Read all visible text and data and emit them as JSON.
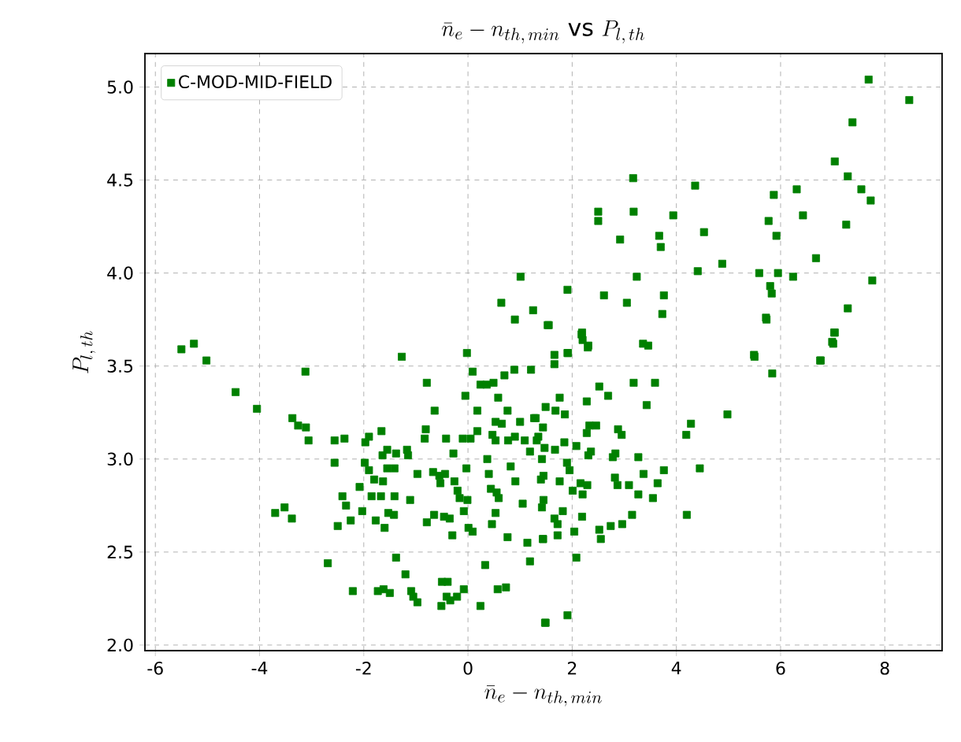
{
  "chart_data": {
    "type": "scatter",
    "title": "\\bar{n}_e - n_{th,\\,min}\\ \\mathrm{vs}\\ P_{l,\\,th}",
    "xlabel": "\\bar{n}_e - n_{th,\\,min}",
    "ylabel": "P_{l,\\,th}",
    "xlim": [
      -6.2,
      9.1
    ],
    "ylim": [
      1.97,
      5.18
    ],
    "xticks": [
      -6,
      -4,
      -2,
      0,
      2,
      4,
      6,
      8
    ],
    "yticks": [
      {
        "value": 2.0,
        "label": "2.0"
      },
      {
        "value": 2.5,
        "label": "2.5"
      },
      {
        "value": 3.0,
        "label": "3.0"
      },
      {
        "value": 3.5,
        "label": "3.5"
      },
      {
        "value": 4.0,
        "label": "4.0"
      },
      {
        "value": 4.5,
        "label": "4.5"
      },
      {
        "value": 5.0,
        "label": "5.0"
      }
    ],
    "grid": true,
    "legend": "top left",
    "marker": "square",
    "series": [
      {
        "name": "C-MOD-MID-FIELD",
        "color": "#008000",
        "x": [
          -5.5,
          -5.26,
          -5.02,
          -1.27,
          -0.02,
          0.64,
          1.01,
          0.9,
          1.25,
          1.53,
          7.69,
          8.47,
          7.38,
          7.04,
          7.29,
          7.55,
          7.73,
          7.26,
          7.76,
          7.29,
          7.04,
          7.01,
          6.76,
          6.68,
          6.43,
          6.31,
          5.87,
          5.77,
          5.92,
          6.24,
          5.95,
          5.59,
          5.8,
          5.83,
          5.72,
          5.49,
          3.17,
          4.36,
          3.18,
          3.94,
          2.5,
          2.5,
          4.53,
          2.92,
          3.67,
          3.7,
          4.88,
          4.41,
          3.24,
          1.91,
          2.61,
          3.05,
          3.76,
          3.73,
          1.55,
          2.19,
          2.2,
          2.31,
          3.36,
          3.46,
          1.66,
          1.91,
          -4.46,
          -4.05,
          -3.12,
          -3.37,
          -3.26,
          -3.11,
          -3.06,
          -3.7,
          -3.52,
          -3.38,
          -2.69,
          -2.56,
          -2.37,
          -2.56,
          -2.5,
          -2.41,
          -2.34,
          -2.25,
          -2.21,
          -2.08,
          -2.03,
          -1.97,
          -1.9,
          -1.66,
          -1.55,
          -1.64,
          -1.38,
          -1.17,
          -1.15,
          -1.98,
          -1.9,
          -1.8,
          -1.63,
          -1.55,
          -1.41,
          -1.85,
          -1.67,
          -1.41,
          -1.11,
          -1.53,
          -1.42,
          -1.77,
          -1.6,
          -1.38,
          -1.2,
          -1.73,
          -1.62,
          -1.5,
          -1.09,
          -1.05,
          -0.97,
          -0.79,
          -0.64,
          -0.81,
          -0.83,
          -0.97,
          -0.67,
          -0.55,
          -0.44,
          -0.53,
          -0.79,
          -0.65,
          -0.46,
          -0.35,
          -0.3,
          -0.42,
          -0.28,
          -0.26,
          -0.2,
          -0.16,
          -0.1,
          -0.03,
          -0.01,
          -0.08,
          0.01,
          0.09,
          -0.5,
          -0.39,
          -0.51,
          -0.41,
          -0.34,
          -0.21,
          -0.08,
          0.24,
          0.33,
          0.57,
          0.73,
          -0.05,
          0.09,
          0.18,
          0.24,
          0.36,
          0.49,
          0.7,
          0.89,
          1.21,
          0.58,
          0.76,
          0.53,
          0.65,
          0.18,
          0.05,
          0.47,
          0.53,
          0.37,
          0.77,
          0.9,
          1.0,
          1.27,
          0.4,
          0.44,
          0.55,
          0.59,
          0.82,
          0.91,
          1.09,
          1.19,
          1.32,
          1.05,
          0.53,
          0.46,
          0.76,
          1.14,
          1.44,
          1.19,
          1.48,
          1.45,
          1.42,
          1.66,
          1.92,
          2.18,
          2.3,
          2.52,
          2.69,
          3.18,
          3.59,
          3.43,
          2.28,
          1.76,
          1.86,
          1.49,
          1.68,
          1.3,
          2.33,
          2.46,
          2.28,
          2.88,
          2.95,
          1.44,
          1.35,
          1.85,
          2.08,
          2.36,
          2.31,
          1.47,
          1.67,
          2.78,
          2.83,
          3.27,
          4.19,
          4.28,
          4.98,
          4.45,
          3.76,
          3.37,
          3.64,
          3.09,
          2.82,
          2.87,
          3.27,
          3.55,
          2.16,
          2.29,
          2.2,
          2.01,
          1.95,
          1.9,
          1.76,
          1.4,
          1.45,
          1.42,
          1.82,
          1.66,
          1.72,
          2.19,
          3.15,
          2.96,
          2.74,
          2.52,
          2.55,
          2.04,
          1.72,
          1.44,
          2.08,
          4.2,
          1.91,
          1.49,
          5.5,
          5.84,
          6.77,
          7.03,
          6.99,
          5.73
        ],
        "values": [
          3.59,
          3.62,
          3.53,
          3.55,
          3.57,
          3.84,
          3.98,
          3.75,
          3.8,
          3.72,
          5.04,
          4.93,
          4.81,
          4.6,
          4.52,
          4.45,
          4.39,
          4.26,
          3.96,
          3.81,
          3.68,
          3.62,
          3.53,
          4.08,
          4.31,
          4.45,
          4.42,
          4.28,
          4.2,
          3.98,
          4.0,
          4.0,
          3.93,
          3.89,
          3.76,
          3.56,
          4.51,
          4.47,
          4.33,
          4.31,
          4.33,
          4.28,
          4.22,
          4.18,
          4.2,
          4.14,
          4.05,
          4.01,
          3.98,
          3.91,
          3.88,
          3.84,
          3.88,
          3.78,
          3.72,
          3.68,
          3.64,
          3.61,
          3.62,
          3.61,
          3.56,
          3.57,
          3.36,
          3.27,
          3.47,
          3.22,
          3.18,
          3.17,
          3.1,
          2.71,
          2.74,
          2.68,
          2.44,
          3.1,
          3.11,
          2.98,
          2.64,
          2.8,
          2.75,
          2.67,
          2.29,
          2.85,
          2.72,
          3.09,
          3.12,
          3.15,
          3.05,
          3.02,
          3.03,
          3.05,
          3.02,
          2.98,
          2.94,
          2.89,
          2.88,
          2.95,
          2.95,
          2.8,
          2.8,
          2.8,
          2.78,
          2.71,
          2.7,
          2.67,
          2.63,
          2.47,
          2.38,
          2.29,
          2.3,
          2.28,
          2.29,
          2.26,
          2.23,
          3.41,
          3.26,
          3.16,
          3.11,
          2.92,
          2.93,
          2.91,
          2.92,
          2.87,
          2.66,
          2.7,
          2.69,
          2.68,
          2.59,
          3.11,
          3.03,
          2.88,
          2.83,
          2.79,
          3.11,
          2.95,
          2.78,
          2.72,
          2.63,
          2.61,
          2.34,
          2.34,
          2.21,
          2.26,
          2.24,
          2.26,
          2.3,
          2.21,
          2.43,
          2.3,
          2.31,
          3.34,
          3.47,
          3.26,
          3.4,
          3.4,
          3.41,
          3.45,
          3.48,
          3.48,
          3.33,
          3.26,
          3.2,
          3.19,
          3.15,
          3.11,
          3.13,
          3.1,
          3.0,
          3.1,
          3.12,
          3.2,
          3.22,
          2.92,
          2.84,
          2.82,
          2.79,
          2.96,
          2.88,
          3.1,
          3.04,
          3.1,
          2.76,
          2.71,
          2.65,
          2.58,
          2.55,
          2.57,
          2.45,
          2.12,
          2.91,
          3.0,
          3.51,
          3.57,
          3.67,
          3.6,
          3.39,
          3.34,
          3.41,
          3.41,
          3.29,
          3.31,
          3.33,
          3.24,
          3.28,
          3.26,
          3.22,
          3.18,
          3.18,
          3.14,
          3.16,
          3.13,
          3.17,
          3.12,
          3.09,
          3.07,
          3.04,
          3.02,
          3.06,
          3.05,
          3.01,
          3.03,
          3.01,
          3.13,
          3.19,
          3.24,
          2.95,
          2.94,
          2.92,
          2.87,
          2.86,
          2.9,
          2.86,
          2.81,
          2.79,
          2.87,
          2.86,
          2.81,
          2.83,
          2.94,
          2.98,
          2.88,
          2.89,
          2.78,
          2.74,
          2.72,
          2.68,
          2.65,
          2.69,
          2.7,
          2.65,
          2.64,
          2.62,
          2.57,
          2.61,
          2.59,
          2.57,
          2.47,
          2.7,
          2.16,
          2.12,
          3.55,
          3.46,
          3.53,
          3.68,
          3.63,
          3.75
        ]
      }
    ]
  }
}
